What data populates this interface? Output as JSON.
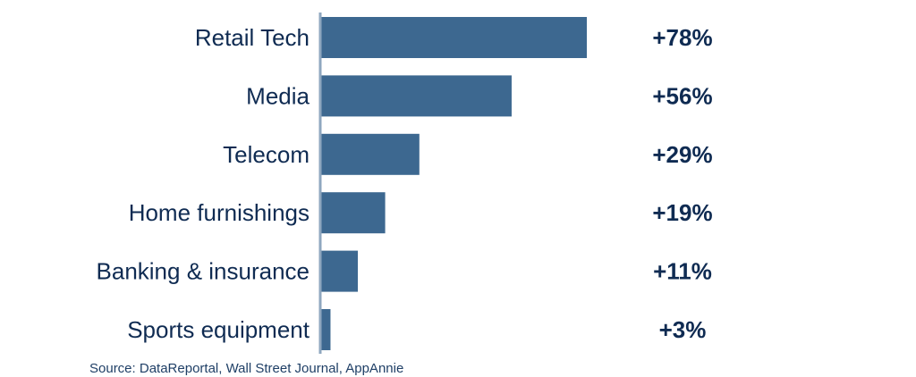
{
  "chart_data": {
    "type": "bar",
    "orientation": "horizontal",
    "categories": [
      "Retail Tech",
      "Media",
      "Telecom",
      "Home furnishings",
      "Banking & insurance",
      "Sports equipment"
    ],
    "values": [
      78,
      56,
      29,
      19,
      11,
      3
    ],
    "value_labels": [
      "+78%",
      "+56%",
      "+29%",
      "+19%",
      "+11%",
      "+3%"
    ],
    "title": "",
    "xlabel": "",
    "ylabel": "",
    "xlim": [
      0,
      78
    ],
    "grid": false,
    "legend": "none",
    "bar_color": "#3d6890",
    "axis_color": "#8fa7bf",
    "text_color": "#0f2b52"
  },
  "source_text": "Source: DataReportal, Wall Street Journal, AppAnnie"
}
